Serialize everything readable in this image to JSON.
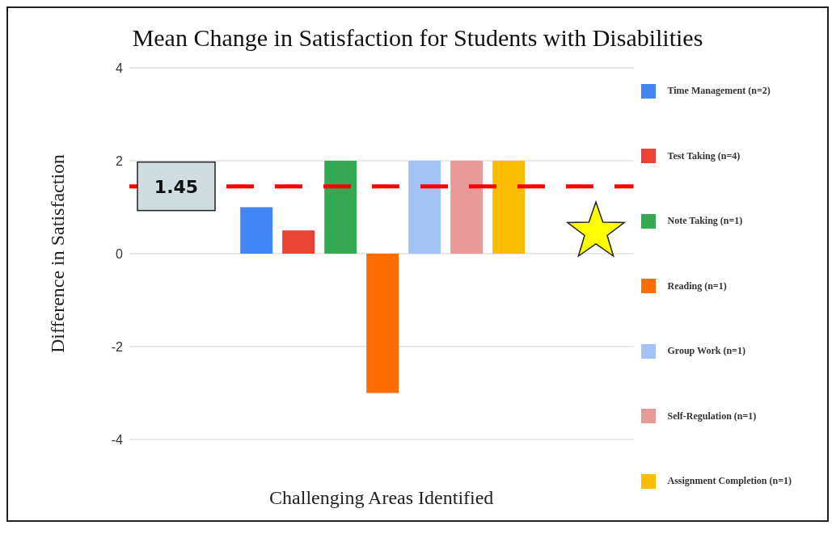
{
  "chart_data": {
    "type": "bar",
    "title": "Mean Change in Satisfaction for Students with Disabilities",
    "xlabel": "Challenging Areas Identified",
    "ylabel": "Difference in Satisfaction",
    "categories": [
      null
    ],
    "series": [
      {
        "name": "Time Management (n=2)",
        "color": "#4285f4",
        "values": [
          1
        ]
      },
      {
        "name": "Test Taking (n=4)",
        "color": "#ea4335",
        "values": [
          0.5
        ]
      },
      {
        "name": "Note Taking (n=1)",
        "color": "#34a853",
        "values": [
          2
        ]
      },
      {
        "name": "Reading (n=1)",
        "color": "#ff6d01",
        "values": [
          -3
        ]
      },
      {
        "name": "Group Work (n=1)",
        "color": "#a4c2f4",
        "values": [
          2
        ]
      },
      {
        "name": "Self-Regulation (n=1)",
        "color": "#ea9999",
        "values": [
          2
        ]
      },
      {
        "name": "Assignment Completion (n=1)",
        "color": "#fbbc04",
        "values": [
          2
        ]
      }
    ],
    "ylim": [
      -4,
      4
    ],
    "yticks": [
      -4,
      -2,
      0,
      2,
      4
    ],
    "grid": "y",
    "legend": "right",
    "ref_lines": [
      {
        "axis": "y",
        "value": 1.45,
        "label": "1.45",
        "color": "#ff0000",
        "line_style": "dashed"
      }
    ]
  }
}
